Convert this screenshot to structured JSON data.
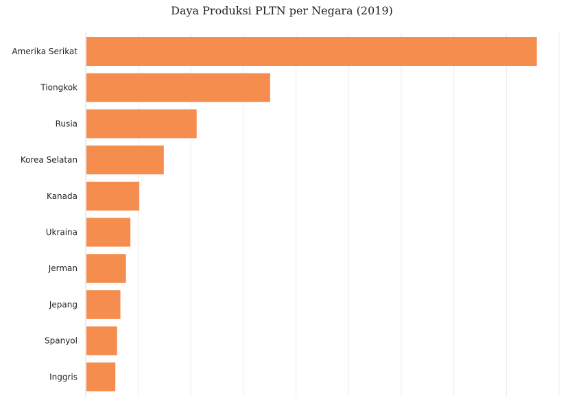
{
  "chart_data": {
    "type": "bar",
    "orientation": "horizontal",
    "title": "Daya Produksi PLTN per Negara (2019)",
    "xlabel": "",
    "ylabel": "",
    "categories": [
      "Amerika Serikat",
      "Tiongkok",
      "Rusia",
      "Korea Selatan",
      "Kanada",
      "Ukraina",
      "Jerman",
      "Jepang",
      "Spanyol",
      "Inggris"
    ],
    "values": [
      809,
      330,
      198,
      139,
      95,
      79,
      71,
      61,
      55,
      52
    ],
    "xlim": [
      0,
      850
    ],
    "grid": true,
    "bar_color": "#f58d4f",
    "grid_color": "#ececec",
    "axis_color": "#d9d9d9"
  }
}
